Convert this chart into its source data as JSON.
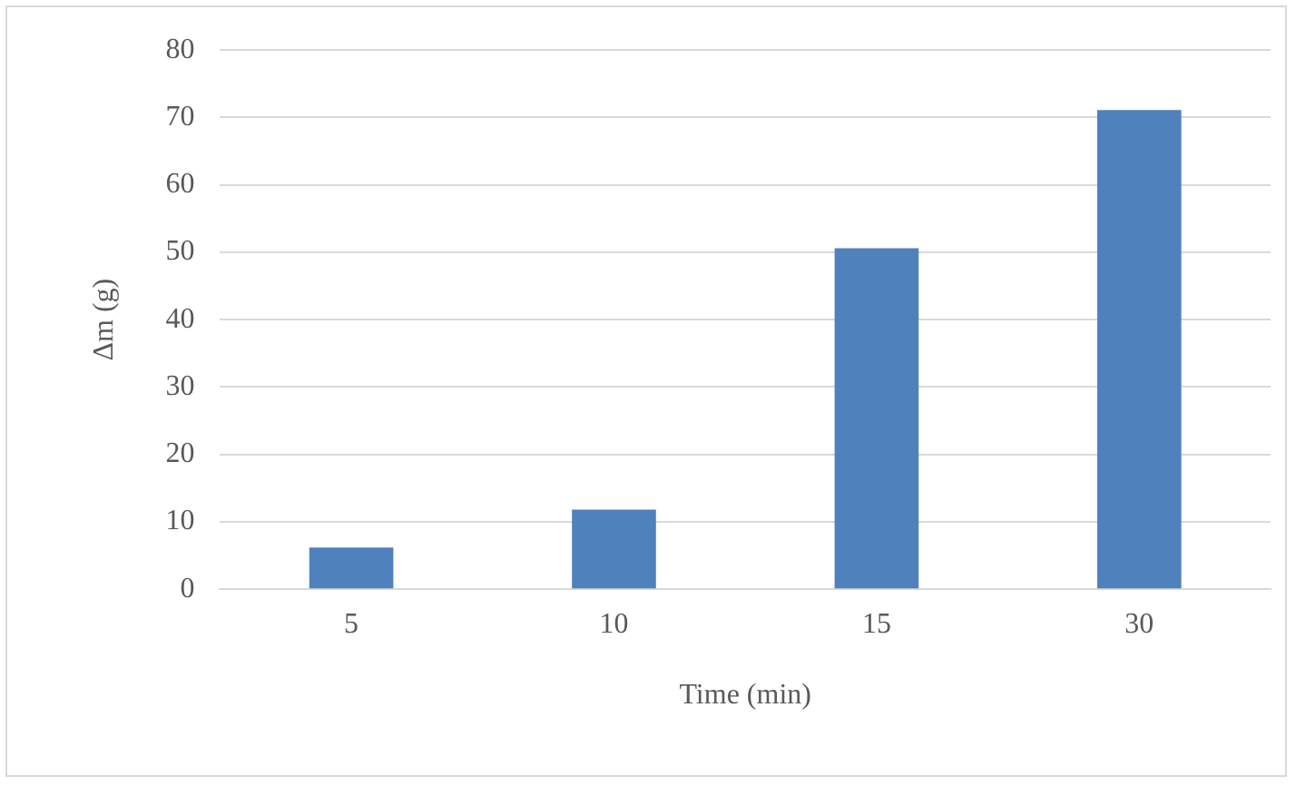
{
  "chart_data": {
    "type": "bar",
    "xlabel": "Time (min)",
    "ylabel": "Δm (g)",
    "categories": [
      "5",
      "10",
      "15",
      "30"
    ],
    "values": [
      6.2,
      11.8,
      50.6,
      71.1
    ],
    "color": "#4f81bd",
    "ylim": [
      0,
      80
    ],
    "yticks": [
      0,
      10,
      20,
      30,
      40,
      50,
      60,
      70,
      80
    ],
    "grid": "y",
    "legend": false
  }
}
